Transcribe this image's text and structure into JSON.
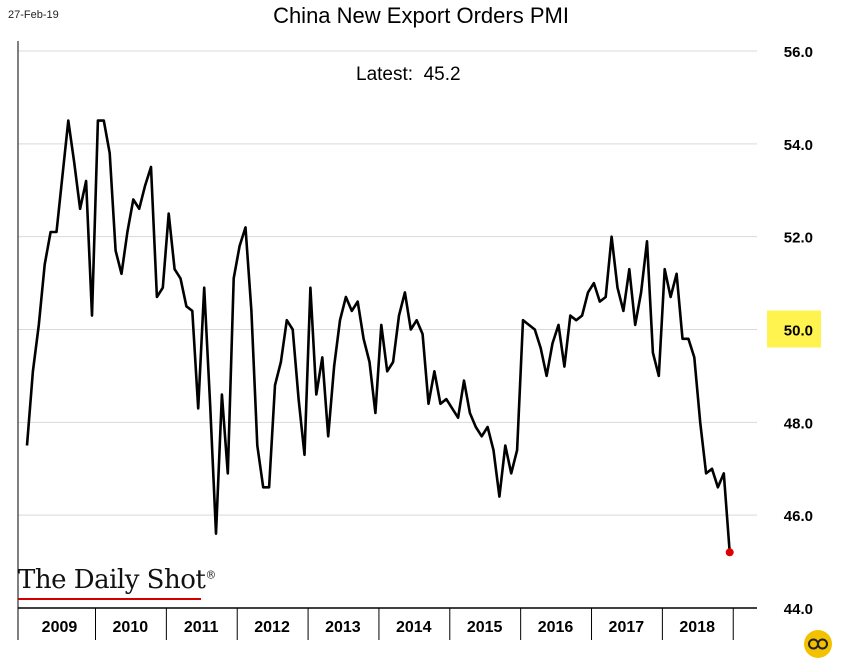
{
  "header": {
    "date": "27-Feb-19",
    "latest_label": "Latest:",
    "latest_value": "45.2"
  },
  "branding": {
    "name": "The Daily Shot",
    "registered_mark": "®",
    "corner_icon": "daily-shot-logo-icon",
    "accent_color": "#d00000",
    "corner_color": "#f2c200"
  },
  "colors": {
    "line": "#000000",
    "last_point": "#e00000",
    "highlight": "#fff44f",
    "grid": "#d9d9d9"
  },
  "chart_data": {
    "type": "line",
    "title": "China New Export Orders PMI",
    "xlabel": "",
    "ylabel": "",
    "ylim": [
      44,
      56
    ],
    "yticks": [
      "44.0",
      "46.0",
      "48.0",
      "50.0",
      "52.0",
      "54.0",
      "56.0"
    ],
    "highlighted_ytick": "50.0",
    "y_axis_side": "right",
    "grid": true,
    "legend": "none",
    "x_start": "2009-01",
    "x_end": "2019-02",
    "year_labels": [
      "2009",
      "2010",
      "2011",
      "2012",
      "2013",
      "2014",
      "2015",
      "2016",
      "2017",
      "2018"
    ],
    "series": [
      {
        "values": [
          47.5,
          49.1,
          50.1,
          51.4,
          52.1,
          52.1,
          53.3,
          54.5,
          53.6,
          52.6,
          53.2,
          50.3,
          54.5,
          54.5,
          53.8,
          51.7,
          51.2,
          52.1,
          52.8,
          52.6,
          53.1,
          53.5,
          50.7,
          50.9,
          52.5,
          51.3,
          51.1,
          50.5,
          50.4,
          48.3,
          50.9,
          48.4,
          45.6,
          48.6,
          46.9,
          51.1,
          51.8,
          52.2,
          50.4,
          47.5,
          46.6,
          46.6,
          48.8,
          49.3,
          50.2,
          50.0,
          48.5,
          47.3,
          50.9,
          48.6,
          49.4,
          47.7,
          49.2,
          50.2,
          50.7,
          50.4,
          50.6,
          49.8,
          49.3,
          48.2,
          50.1,
          49.1,
          49.3,
          50.3,
          50.8,
          50.0,
          50.2,
          49.9,
          48.4,
          49.1,
          48.4,
          48.5,
          48.3,
          48.1,
          48.9,
          48.2,
          47.9,
          47.7,
          47.9,
          47.4,
          46.4,
          47.5,
          46.9,
          47.4,
          50.2,
          50.1,
          50.0,
          49.6,
          49.0,
          49.7,
          50.1,
          49.2,
          50.3,
          50.2,
          50.3,
          50.8,
          51.0,
          50.6,
          50.7,
          52.0,
          50.9,
          50.4,
          51.3,
          50.1,
          50.8,
          51.9,
          49.5,
          49.0,
          51.3,
          50.7,
          51.2,
          49.8,
          49.8,
          49.4,
          48.0,
          46.9,
          47.0,
          46.6,
          46.9,
          45.2
        ]
      }
    ]
  }
}
